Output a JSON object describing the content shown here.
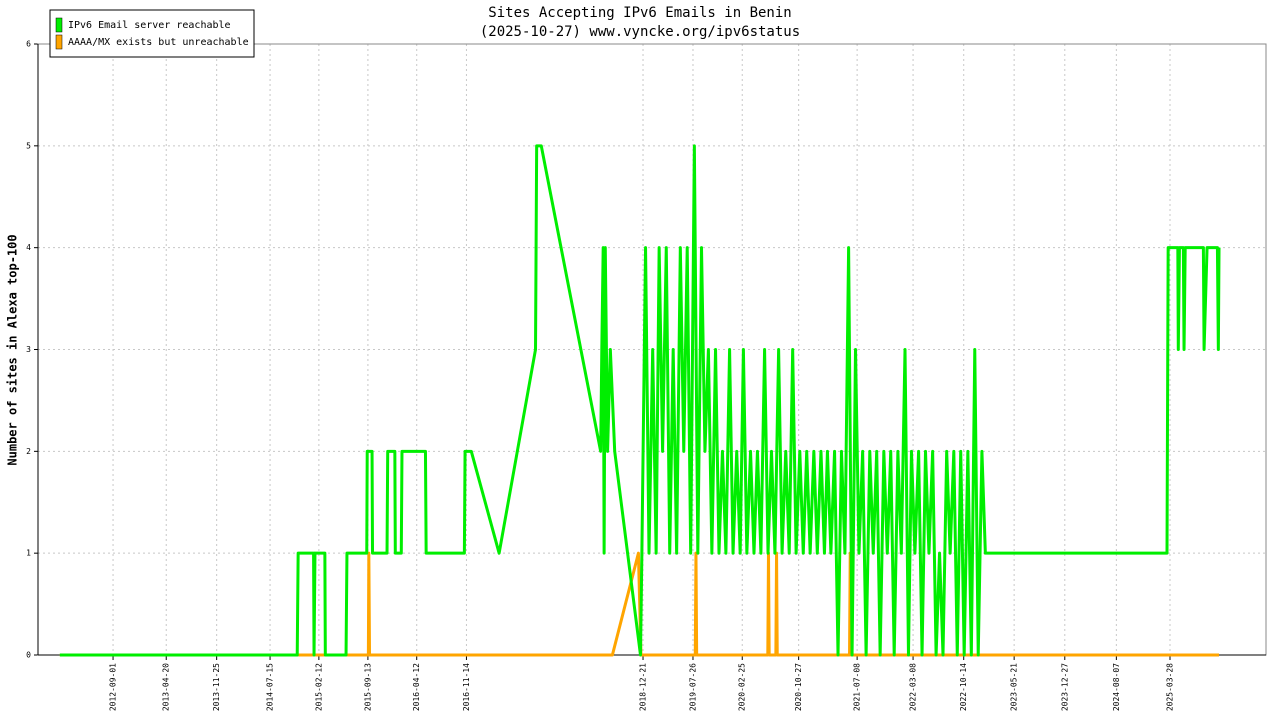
{
  "chart_data": {
    "type": "line",
    "title": "Sites Accepting IPv6 Emails in Benin",
    "subtitle": "(2025-10-27) www.vyncke.org/ipv6status",
    "y_label": "Number of sites in Alexa top-100",
    "xlim": [
      "2011-10-11",
      "2026-05-19"
    ],
    "ylim": [
      0,
      6
    ],
    "yticks": [
      0,
      1,
      2,
      3,
      4,
      5,
      6
    ],
    "xticks": [
      "2012-09-01",
      "2013-04-20",
      "2013-11-25",
      "2014-07-15",
      "2015-02-12",
      "2015-09-13",
      "2016-04-12",
      "2016-11-14",
      "2018-12-21",
      "2019-07-26",
      "2020-02-25",
      "2020-10-27",
      "2021-07-08",
      "2022-03-08",
      "2022-10-14",
      "2023-05-21",
      "2023-12-27",
      "2024-08-07",
      "2025-03-28"
    ],
    "grid": true,
    "legend": "upper left",
    "series": [
      {
        "name": "IPv6 Email server reachable",
        "color": "#00ee00",
        "x": [
          "2012-01-14",
          "2014-11-10",
          "2014-11-14",
          "2015-01-20",
          "2015-01-22",
          "2015-01-26",
          "2015-03-10",
          "2015-03-12",
          "2015-06-10",
          "2015-06-14",
          "2015-09-08",
          "2015-09-10",
          "2015-10-01",
          "2015-10-03",
          "2015-12-05",
          "2015-12-08",
          "2016-01-08",
          "2016-01-10",
          "2016-02-05",
          "2016-02-08",
          "2016-05-20",
          "2016-05-23",
          "2016-11-05",
          "2016-11-08",
          "2016-12-05",
          "2017-04-05",
          "2017-09-10",
          "2017-09-15",
          "2017-10-05",
          "2018-06-20",
          "2018-06-25",
          "2018-07-01",
          "2018-07-05",
          "2018-07-10",
          "2018-07-20",
          "2018-08-01",
          "2018-08-20",
          "2018-12-10",
          "2018-12-16",
          "2019-01-01",
          "2019-01-16",
          "2019-02-01",
          "2019-02-16",
          "2019-03-01",
          "2019-03-16",
          "2019-04-01",
          "2019-04-16",
          "2019-05-01",
          "2019-05-16",
          "2019-06-01",
          "2019-06-16",
          "2019-07-01",
          "2019-07-16",
          "2019-08-01",
          "2019-08-16",
          "2019-09-01",
          "2019-09-16",
          "2019-10-01",
          "2019-10-16",
          "2019-11-01",
          "2019-11-16",
          "2019-12-01",
          "2019-12-16",
          "2020-01-01",
          "2020-01-16",
          "2020-02-01",
          "2020-02-16",
          "2020-03-01",
          "2020-03-16",
          "2020-04-01",
          "2020-04-16",
          "2020-05-01",
          "2020-05-16",
          "2020-06-01",
          "2020-06-16",
          "2020-07-01",
          "2020-07-16",
          "2020-08-01",
          "2020-08-16",
          "2020-09-01",
          "2020-09-16",
          "2020-10-01",
          "2020-10-16",
          "2020-11-01",
          "2020-11-16",
          "2020-12-01",
          "2020-12-16",
          "2021-01-01",
          "2021-01-16",
          "2021-02-01",
          "2021-02-16",
          "2021-03-01",
          "2021-03-16",
          "2021-04-01",
          "2021-04-16",
          "2021-05-01",
          "2021-05-16",
          "2021-06-01",
          "2021-06-16",
          "2021-07-01",
          "2021-07-16",
          "2021-08-01",
          "2021-08-16",
          "2021-09-01",
          "2021-09-16",
          "2021-10-01",
          "2021-10-16",
          "2021-11-01",
          "2021-11-16",
          "2021-12-01",
          "2021-12-16",
          "2022-01-01",
          "2022-01-16",
          "2022-02-01",
          "2022-02-16",
          "2022-03-01",
          "2022-03-16",
          "2022-04-01",
          "2022-04-16",
          "2022-05-01",
          "2022-05-16",
          "2022-06-01",
          "2022-06-16",
          "2022-07-01",
          "2022-07-16",
          "2022-08-01",
          "2022-08-16",
          "2022-09-01",
          "2022-09-16",
          "2022-10-01",
          "2022-10-16",
          "2022-11-01",
          "2022-11-16",
          "2022-12-01",
          "2022-12-16",
          "2023-01-01",
          "2023-01-16",
          "2025-03-15",
          "2025-03-20",
          "2025-05-01",
          "2025-05-03",
          "2025-05-08",
          "2025-05-25",
          "2025-05-28",
          "2025-06-02",
          "2025-08-20",
          "2025-08-23",
          "2025-09-05",
          "2025-10-20",
          "2025-10-24",
          "2025-10-27"
        ],
        "values": [
          0,
          0,
          1,
          1,
          0,
          1,
          1,
          0,
          0,
          1,
          1,
          2,
          2,
          1,
          1,
          2,
          2,
          1,
          1,
          2,
          2,
          1,
          1,
          2,
          2,
          1,
          3,
          5,
          5,
          2,
          3,
          4,
          1,
          4,
          2,
          3,
          2,
          0,
          1,
          4,
          1,
          3,
          1,
          4,
          2,
          4,
          1,
          3,
          1,
          4,
          2,
          4,
          1,
          5,
          1,
          4,
          2,
          3,
          1,
          3,
          1,
          2,
          1,
          3,
          1,
          2,
          1,
          3,
          1,
          2,
          1,
          2,
          1,
          3,
          1,
          2,
          1,
          3,
          1,
          2,
          1,
          3,
          1,
          2,
          1,
          2,
          1,
          2,
          1,
          2,
          1,
          2,
          1,
          2,
          0,
          2,
          1,
          4,
          0,
          3,
          1,
          2,
          0,
          2,
          1,
          2,
          0,
          2,
          1,
          2,
          0,
          2,
          1,
          3,
          0,
          2,
          1,
          2,
          0,
          2,
          1,
          2,
          0,
          1,
          0,
          2,
          1,
          2,
          0,
          2,
          0,
          2,
          0,
          3,
          0,
          2,
          1,
          1,
          4,
          4,
          3,
          4,
          4,
          3,
          4,
          4,
          3,
          4,
          4,
          3,
          4
        ]
      },
      {
        "name": "AAAA/MX exists but unreachable",
        "color": "#ffa500",
        "x": [
          "2012-01-14",
          "2015-09-15",
          "2015-09-17",
          "2015-09-20",
          "2018-08-10",
          "2018-12-01",
          "2018-12-12",
          "2019-08-05",
          "2019-08-08",
          "2019-08-11",
          "2020-06-15",
          "2020-06-18",
          "2020-06-21",
          "2020-07-20",
          "2020-07-23",
          "2020-07-26",
          "2021-06-05",
          "2021-06-08",
          "2021-06-11",
          "2025-10-27"
        ],
        "values": [
          0,
          0,
          1,
          0,
          0,
          1,
          0,
          0,
          1,
          0,
          0,
          1,
          0,
          0,
          1,
          0,
          0,
          1,
          0,
          0
        ]
      }
    ]
  }
}
